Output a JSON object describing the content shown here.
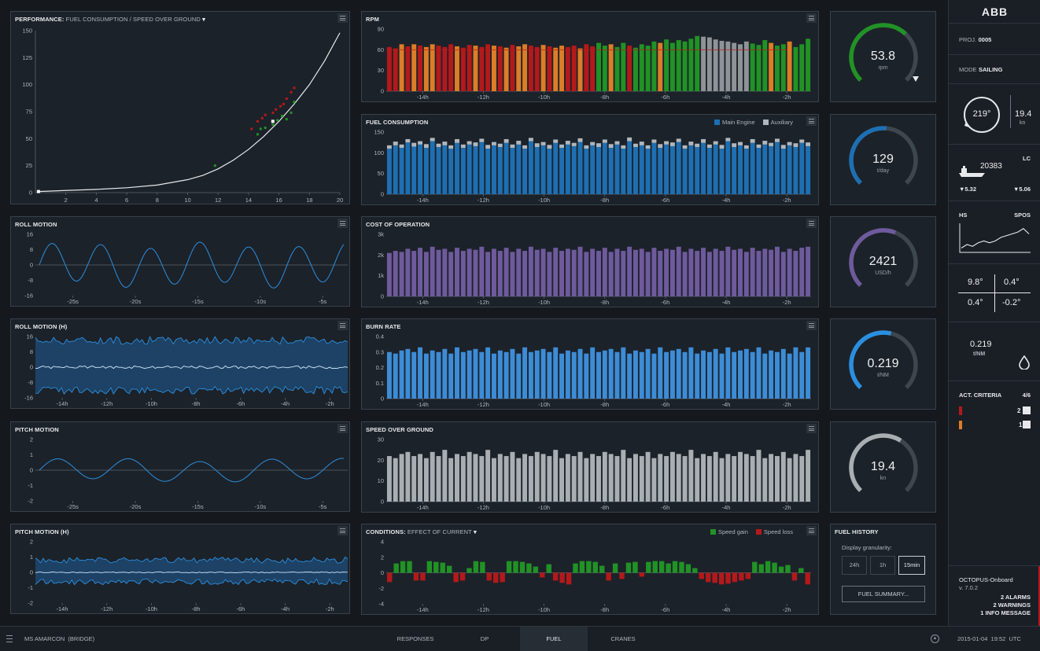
{
  "colors": {
    "red": "#b3191b",
    "orange": "#dc7d27",
    "green": "#219226",
    "grey": "#8e9398",
    "blue": "#1e6fb2",
    "blue_light": "#2b8fe0",
    "aux": "#b0b7bd",
    "purple": "#6e5a9c",
    "sky": "#3d8cd6",
    "sog": "#a9aeb3"
  },
  "performance": {
    "title": "PERFORMANCE:",
    "subtitle": "FUEL CONSUMPTION / SPEED OVER GROUND",
    "chart_data": {
      "type": "scatter",
      "xlim": [
        0,
        20
      ],
      "ylim": [
        0,
        150
      ],
      "xticks": [
        2,
        4,
        6,
        8,
        10,
        12,
        14,
        16,
        18,
        20
      ],
      "yticks": [
        0,
        25,
        50,
        75,
        100,
        125,
        150
      ],
      "curve": [
        [
          0.2,
          1
        ],
        [
          2,
          2
        ],
        [
          4,
          3
        ],
        [
          6,
          4.5
        ],
        [
          8,
          7
        ],
        [
          10,
          12
        ],
        [
          11,
          16
        ],
        [
          12,
          22
        ],
        [
          13,
          30
        ],
        [
          14,
          40
        ],
        [
          15,
          52
        ],
        [
          16,
          66
        ],
        [
          17,
          82
        ],
        [
          18,
          100
        ],
        [
          19,
          122
        ],
        [
          20,
          148
        ]
      ],
      "points_red": [
        [
          14.2,
          59
        ],
        [
          14.6,
          66
        ],
        [
          14.9,
          69
        ],
        [
          15.1,
          72
        ],
        [
          15.6,
          74
        ],
        [
          15.8,
          77
        ],
        [
          16.1,
          80
        ],
        [
          16.3,
          82
        ],
        [
          16.5,
          87
        ],
        [
          16.8,
          93
        ],
        [
          17,
          97
        ]
      ],
      "points_green": [
        [
          11.8,
          25
        ],
        [
          14.6,
          54
        ],
        [
          14.8,
          59
        ],
        [
          15.1,
          60
        ],
        [
          15.6,
          63
        ],
        [
          15.9,
          67
        ],
        [
          16.2,
          71
        ],
        [
          16.5,
          68
        ],
        [
          16.8,
          74
        ],
        [
          17,
          84
        ]
      ],
      "marker": [
        15.6,
        66
      ]
    }
  },
  "roll_motion": {
    "title": "ROLL MOTION",
    "chart_data": {
      "type": "line",
      "ylim": [
        -16,
        16
      ],
      "yticks": [
        16,
        8,
        0,
        -8,
        -16
      ],
      "xticklabels": [
        "-25s",
        "-20s",
        "-15s",
        "-10s",
        "-5s"
      ],
      "period_s": 4.7,
      "amplitude": 12,
      "duration_s": 29
    }
  },
  "roll_motion_h": {
    "title": "ROLL MOTION (H)",
    "chart_data": {
      "type": "area",
      "ylim": [
        -16,
        16
      ],
      "yticks": [
        16,
        8,
        0,
        -8,
        -16
      ],
      "xticklabels": [
        "-14h",
        "-12h",
        "-10h",
        "-8h",
        "-6h",
        "-4h",
        "-2h"
      ],
      "upper_band": [
        12,
        16
      ],
      "lower_band": [
        -10,
        -14
      ],
      "mean": 0
    }
  },
  "pitch_motion": {
    "title": "PITCH MOTION",
    "chart_data": {
      "type": "line",
      "ylim": [
        -2,
        2
      ],
      "yticks": [
        2,
        1,
        0,
        -1,
        -2
      ],
      "xticklabels": [
        "-25s",
        "-20s",
        "-15s",
        "-10s",
        "-5s"
      ],
      "period_s": 6.8,
      "amplitude": 0.8,
      "duration_s": 29
    }
  },
  "pitch_motion_h": {
    "title": "PITCH MOTION (H)",
    "chart_data": {
      "type": "area",
      "ylim": [
        -2,
        2
      ],
      "yticks": [
        2,
        1,
        0,
        -1,
        -2
      ],
      "xticklabels": [
        "-14h",
        "-12h",
        "-10h",
        "-8h",
        "-6h",
        "-4h",
        "-2h"
      ],
      "upper_band": [
        0.6,
        1
      ],
      "lower_band": [
        -0.4,
        -0.8
      ],
      "mean": 0
    }
  },
  "rpm": {
    "title": "RPM",
    "chart_data": {
      "type": "bar",
      "ylim": [
        0,
        90
      ],
      "yticks": [
        90,
        60,
        30,
        0
      ],
      "xticklabels": [
        "-14h",
        "-12h",
        "-10h",
        "-8h",
        "-6h",
        "-4h",
        "-2h"
      ],
      "values": [
        64,
        62,
        68,
        65,
        68,
        66,
        64,
        68,
        66,
        64,
        68,
        65,
        63,
        67,
        66,
        64,
        68,
        66,
        65,
        63,
        67,
        65,
        68,
        66,
        64,
        67,
        65,
        63,
        66,
        64,
        66,
        62,
        68,
        65,
        70,
        66,
        68,
        64,
        70,
        66,
        63,
        68,
        66,
        72,
        70,
        75,
        70,
        74,
        72,
        76,
        80,
        79,
        78,
        75,
        73,
        72,
        70,
        68,
        72,
        69,
        67,
        74,
        70,
        66,
        68,
        72,
        64,
        68,
        76
      ],
      "state": "RROROROORRRORRORROROROORROROORRORRGGOGGRGGGGOGGGGGGggggggggGGGOGGOGGGG",
      "threshold": 70
    }
  },
  "fuel_consumption": {
    "title": "FUEL CONSUMPTION",
    "legend_main": "Main Engine",
    "legend_aux": "Auxiliary",
    "chart_data": {
      "type": "bar",
      "ylim": [
        0,
        150
      ],
      "yticks": [
        150,
        100,
        50,
        0
      ],
      "xticklabels": [
        "-14h",
        "-12h",
        "-10h",
        "-8h",
        "-6h",
        "-4h",
        "-2h"
      ],
      "main": [
        110,
        118,
        112,
        125,
        115,
        120,
        112,
        128,
        114,
        118,
        110,
        124,
        112,
        120,
        116,
        126,
        110,
        118,
        114,
        124,
        112,
        120,
        110,
        128,
        114,
        118,
        110,
        124,
        112,
        120,
        116,
        126,
        110,
        118,
        114,
        124,
        112,
        120,
        110,
        128,
        114,
        118,
        110,
        124,
        112,
        120,
        116,
        126,
        110,
        118,
        114,
        124,
        112,
        120,
        110,
        128,
        114,
        118,
        110,
        124,
        112,
        120,
        116,
        126,
        110,
        118,
        114,
        124,
        116
      ],
      "aux": [
        8,
        9,
        8,
        8,
        9,
        8,
        9,
        8,
        8,
        9,
        8,
        9,
        8,
        8,
        9,
        8,
        9,
        8,
        8,
        9,
        8,
        9,
        8,
        8,
        9,
        8,
        9,
        8,
        8,
        9,
        8,
        9,
        8,
        8,
        9,
        8,
        9,
        8,
        8,
        9,
        8,
        9,
        8,
        8,
        9,
        8,
        9,
        8,
        8,
        9,
        8,
        9,
        8,
        8,
        9,
        8,
        9,
        8,
        8,
        9,
        8,
        9,
        8,
        8,
        9,
        8,
        9,
        8,
        9
      ]
    }
  },
  "cost_of_operation": {
    "title": "COST OF OPERATION",
    "chart_data": {
      "type": "bar",
      "ylim": [
        0,
        3000
      ],
      "yticks_labels": [
        "3k",
        "2k",
        "1k",
        "0"
      ],
      "yticks": [
        3000,
        2000,
        1000,
        0
      ],
      "xticklabels": [
        "-14h",
        "-12h",
        "-10h",
        "-8h",
        "-6h",
        "-4h",
        "-2h"
      ],
      "values": [
        2100,
        2200,
        2150,
        2300,
        2200,
        2350,
        2150,
        2400,
        2250,
        2300,
        2150,
        2350,
        2200,
        2300,
        2250,
        2400,
        2150,
        2300,
        2200,
        2350,
        2150,
        2300,
        2200,
        2400,
        2250,
        2300,
        2150,
        2350,
        2200,
        2300,
        2250,
        2400,
        2150,
        2300,
        2200,
        2350,
        2150,
        2300,
        2200,
        2400,
        2250,
        2300,
        2150,
        2350,
        2200,
        2300,
        2250,
        2400,
        2150,
        2300,
        2200,
        2350,
        2150,
        2300,
        2200,
        2400,
        2250,
        2300,
        2150,
        2350,
        2200,
        2300,
        2250,
        2400,
        2150,
        2300,
        2200,
        2350,
        2400
      ]
    }
  },
  "burn_rate": {
    "title": "BURN RATE",
    "chart_data": {
      "type": "bar",
      "ylim": [
        0,
        0.4
      ],
      "yticks": [
        0.4,
        0.3,
        0.2,
        0.1,
        0
      ],
      "xticklabels": [
        "-14h",
        "-12h",
        "-10h",
        "-8h",
        "-6h",
        "-4h",
        "-2h"
      ],
      "values": [
        0.3,
        0.29,
        0.31,
        0.32,
        0.3,
        0.33,
        0.29,
        0.31,
        0.3,
        0.32,
        0.29,
        0.33,
        0.3,
        0.31,
        0.32,
        0.3,
        0.33,
        0.29,
        0.31,
        0.3,
        0.32,
        0.29,
        0.33,
        0.3,
        0.31,
        0.32,
        0.3,
        0.33,
        0.29,
        0.31,
        0.3,
        0.32,
        0.29,
        0.33,
        0.3,
        0.31,
        0.32,
        0.3,
        0.33,
        0.29,
        0.31,
        0.3,
        0.32,
        0.29,
        0.33,
        0.3,
        0.31,
        0.32,
        0.3,
        0.33,
        0.29,
        0.31,
        0.3,
        0.32,
        0.29,
        0.33,
        0.3,
        0.31,
        0.32,
        0.3,
        0.33,
        0.29,
        0.31,
        0.3,
        0.32,
        0.29,
        0.33,
        0.3,
        0.33
      ]
    }
  },
  "speed_over_ground": {
    "title": "SPEED OVER GROUND",
    "chart_data": {
      "type": "bar",
      "ylim": [
        0,
        30
      ],
      "yticks": [
        30,
        20,
        10,
        0
      ],
      "xticklabels": [
        "-14h",
        "-12h",
        "-10h",
        "-8h",
        "-6h",
        "-4h",
        "-2h"
      ],
      "values": [
        22,
        21,
        23,
        24,
        22,
        23,
        21,
        24,
        22,
        25,
        21,
        23,
        22,
        24,
        23,
        22,
        25,
        21,
        23,
        22,
        24,
        21,
        23,
        22,
        24,
        23,
        22,
        25,
        21,
        23,
        22,
        24,
        21,
        23,
        22,
        24,
        23,
        22,
        25,
        21,
        23,
        22,
        24,
        21,
        23,
        22,
        24,
        23,
        22,
        25,
        21,
        23,
        22,
        24,
        21,
        23,
        22,
        24,
        23,
        22,
        25,
        21,
        23,
        22,
        24,
        21,
        23,
        22,
        25
      ]
    }
  },
  "conditions": {
    "title": "CONDITIONS:",
    "subtitle": "EFFECT OF CURRENT",
    "legend_gain": "Speed gain",
    "legend_loss": "Speed loss",
    "chart_data": {
      "type": "bar",
      "ylim": [
        -4,
        4
      ],
      "yticks": [
        4,
        2,
        0,
        -2,
        -4
      ],
      "xticklabels": [
        "-14h",
        "-12h",
        "-10h",
        "-8h",
        "-6h",
        "-4h",
        "-2h"
      ],
      "values": [
        -1.2,
        1.2,
        1.5,
        1.5,
        -1,
        -1,
        1.5,
        1.4,
        1.3,
        0.9,
        -1.2,
        -1,
        0.6,
        1.5,
        1.4,
        -1,
        -1.3,
        -1.2,
        1.5,
        1.5,
        1.4,
        1.2,
        0.8,
        -0.6,
        1.1,
        -1,
        -1.3,
        -1.5,
        1.2,
        1.5,
        1.5,
        1.4,
        0.9,
        -1,
        1.2,
        -0.8,
        1.3,
        1.4,
        -0.5,
        1.4,
        1.5,
        1.5,
        1.2,
        1.5,
        1.4,
        1.1,
        0.6,
        -0.8,
        -1.2,
        -1.3,
        -1.5,
        -1.4,
        -1.2,
        -1,
        -0.8,
        1.4,
        1.1,
        1.5,
        1.3,
        0.8,
        1,
        -1,
        0.6,
        -1.5
      ]
    }
  },
  "gauges": [
    {
      "value": "53.8",
      "unit": "rpm",
      "fraction": 0.66,
      "color": "#219226",
      "alarm": true
    },
    {
      "value": "129",
      "unit": "t/day",
      "fraction": 0.52,
      "color": "#1e6fb2",
      "alarm": false
    },
    {
      "value": "2421",
      "unit": "USD/h",
      "fraction": 0.58,
      "color": "#6e5a9c",
      "alarm": false
    },
    {
      "value": "0.219",
      "unit": "t/NM",
      "fraction": 0.55,
      "color": "#2b8fe0",
      "alarm": false
    },
    {
      "value": "19.4",
      "unit": "kn",
      "fraction": 0.62,
      "color": "#a9aeb3",
      "alarm": false
    }
  ],
  "fuel_history": {
    "title": "FUEL HISTORY",
    "granularity_label": "Display granularity:",
    "options": [
      "24h",
      "1h",
      "15min"
    ],
    "selected": "15min",
    "summary_button": "FUEL SUMMARY..."
  },
  "sidebar": {
    "logo": "ABB",
    "proj_label": "PROJ.",
    "proj_value": "0005",
    "mode_label": "MODE",
    "mode_value": "SAILING",
    "heading": "219°",
    "speed": "19.4",
    "speed_unit": "kn",
    "lc_label": "LC",
    "displacement": "20383",
    "draft_fwd": "▼5.32",
    "draft_aft": "▼5.06",
    "hs_label": "HS",
    "spos_label": "SPOS",
    "trend": [
      14,
      12,
      13,
      11,
      10,
      11,
      10,
      8,
      7,
      6,
      5,
      3,
      6
    ],
    "tl": "9.8°",
    "tr": "0.4°",
    "bl": "0.4°",
    "br": "-0.2°",
    "rate": "0.219",
    "rate_unit": "t/NM",
    "criteria_label": "ACT. CRITERIA",
    "criteria_value": "4/6",
    "crit_red": "2",
    "crit_orange": "1",
    "app_name": "OCTOPUS-Onboard",
    "version": "v. 7.0.2",
    "alarms": "2 ALARMS",
    "warnings": "2 WARNINGS",
    "info": "1 INFO MESSAGE"
  },
  "bottom": {
    "vessel": "MS AMARCON  (BRIDGE)",
    "tabs": [
      "RESPONSES",
      "DP",
      "FUEL",
      "CRANES"
    ],
    "active_tab": "FUEL",
    "datetime": "2015-01-04  19:52  UTC"
  }
}
